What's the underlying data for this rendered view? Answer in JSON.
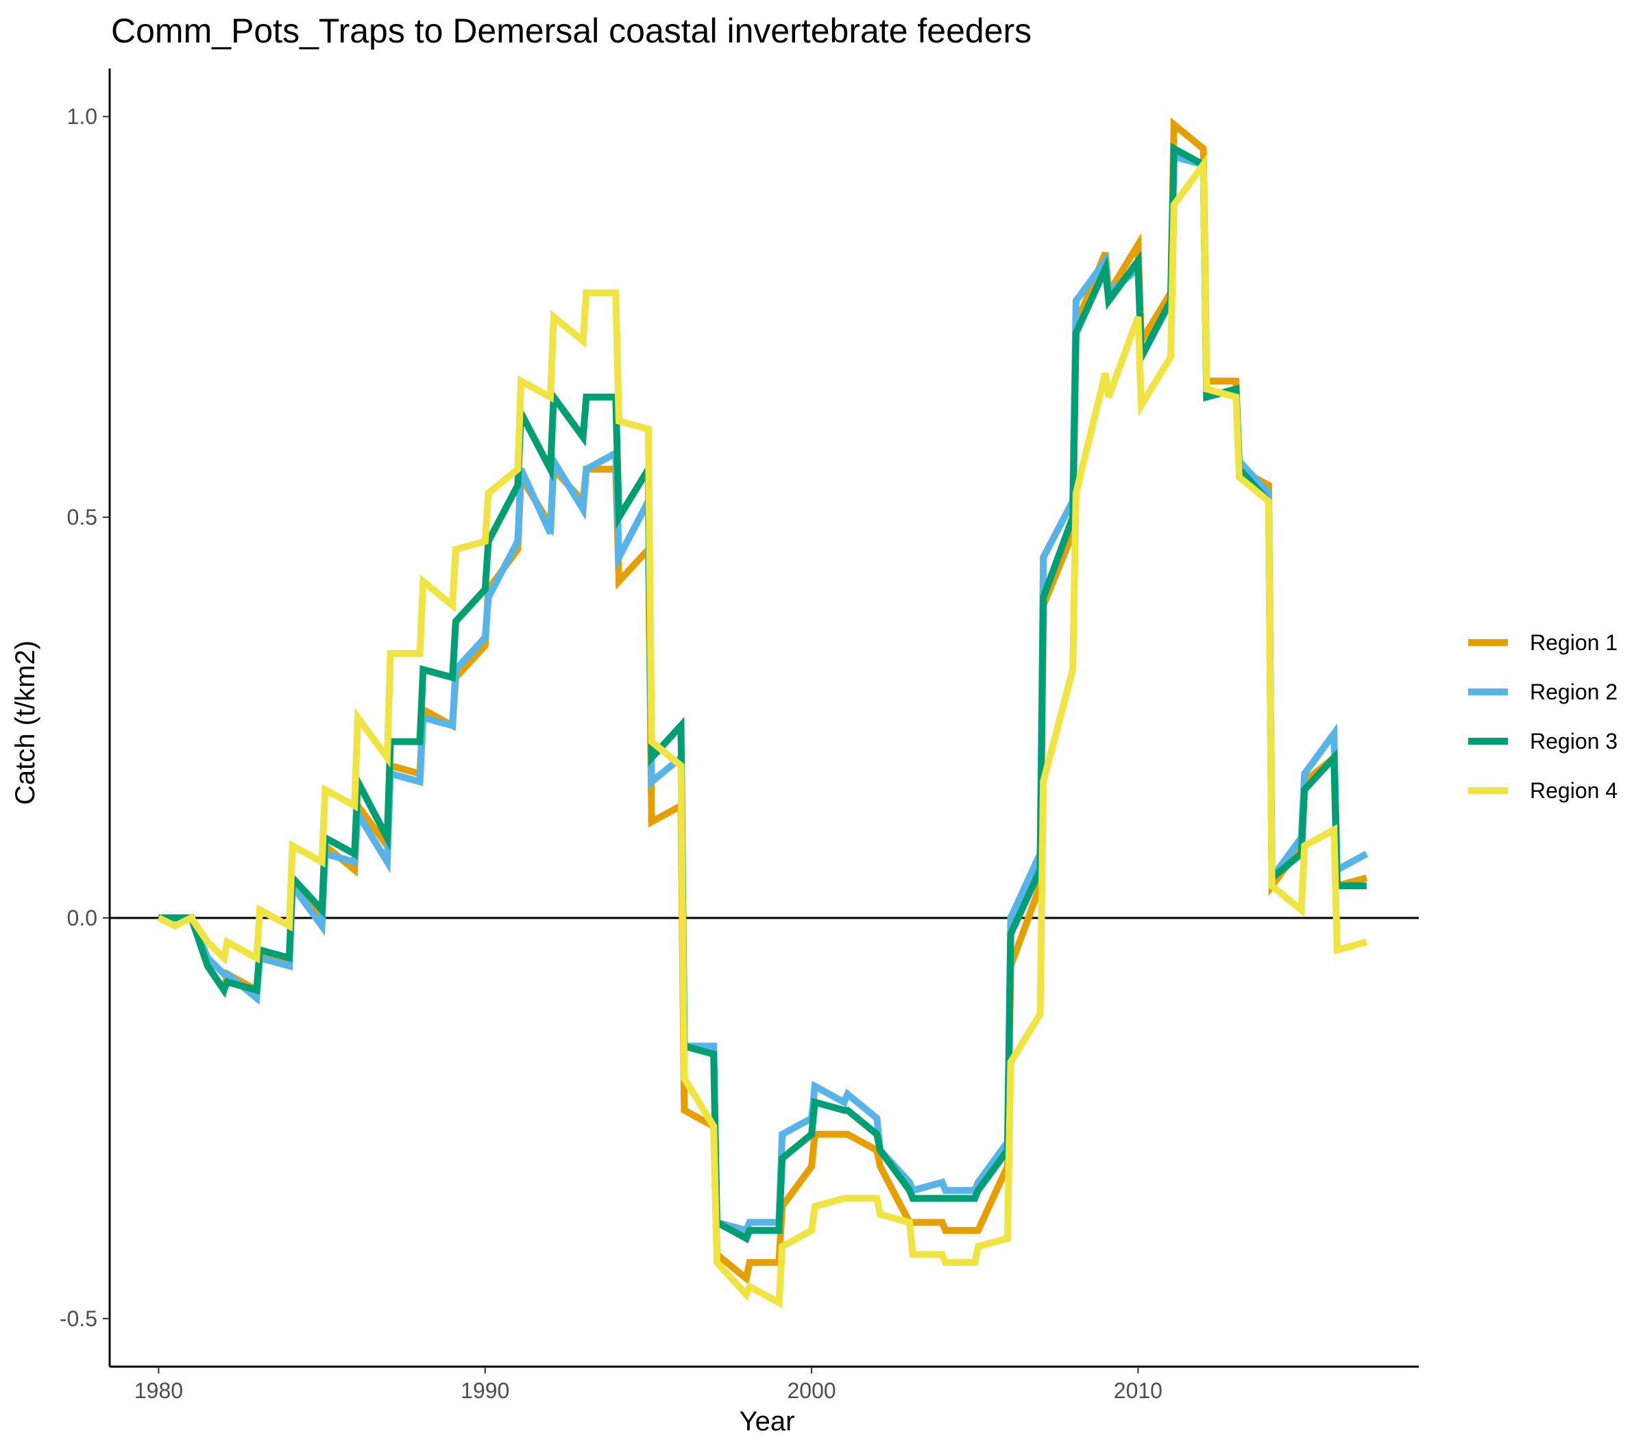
{
  "chart_data": {
    "type": "line",
    "title": "Comm_Pots_Traps to Demersal coastal invertebrate feeders",
    "xlabel": "Year",
    "ylabel": "Catch (t/km2)",
    "xlim": [
      1978.5,
      2018.6
    ],
    "ylim": [
      -0.56,
      1.06
    ],
    "x_ticks": [
      1980,
      1990,
      2000,
      2010
    ],
    "y_ticks": [
      {
        "value": -0.5,
        "label": "-0.5"
      },
      {
        "value": 0.0,
        "label": "0.0"
      },
      {
        "value": 0.5,
        "label": "0.5"
      },
      {
        "value": 1.0,
        "label": "1.0"
      }
    ],
    "zero_line": true,
    "grid": false,
    "legend_position": "right",
    "series": [
      {
        "name": "Region 1",
        "color": "#E69F00",
        "points": [
          [
            1980.0,
            0.0
          ],
          [
            1980.5,
            0.0
          ],
          [
            1981.0,
            0.0
          ],
          [
            1981.5,
            -0.06
          ],
          [
            1982.0,
            -0.09
          ],
          [
            1982.1,
            -0.07
          ],
          [
            1983.0,
            -0.09
          ],
          [
            1983.1,
            -0.05
          ],
          [
            1984.0,
            -0.05
          ],
          [
            1984.1,
            0.04
          ],
          [
            1985.0,
            0.0
          ],
          [
            1985.1,
            0.09
          ],
          [
            1986.0,
            0.06
          ],
          [
            1986.1,
            0.14
          ],
          [
            1987.0,
            0.09
          ],
          [
            1987.1,
            0.19
          ],
          [
            1988.0,
            0.18
          ],
          [
            1988.1,
            0.26
          ],
          [
            1989.0,
            0.24
          ],
          [
            1989.1,
            0.3
          ],
          [
            1990.0,
            0.34
          ],
          [
            1990.1,
            0.41
          ],
          [
            1991.0,
            0.46
          ],
          [
            1991.1,
            0.55
          ],
          [
            1992.0,
            0.49
          ],
          [
            1992.1,
            0.56
          ],
          [
            1993.0,
            0.52
          ],
          [
            1993.1,
            0.56
          ],
          [
            1994.0,
            0.56
          ],
          [
            1994.1,
            0.42
          ],
          [
            1995.0,
            0.46
          ],
          [
            1995.1,
            0.12
          ],
          [
            1996.0,
            0.14
          ],
          [
            1996.1,
            -0.24
          ],
          [
            1997.0,
            -0.26
          ],
          [
            1997.1,
            -0.42
          ],
          [
            1998.0,
            -0.45
          ],
          [
            1998.1,
            -0.43
          ],
          [
            1999.0,
            -0.43
          ],
          [
            1999.1,
            -0.36
          ],
          [
            2000.0,
            -0.31
          ],
          [
            2000.1,
            -0.27
          ],
          [
            2001.0,
            -0.27
          ],
          [
            2001.1,
            -0.27
          ],
          [
            2002.0,
            -0.29
          ],
          [
            2002.1,
            -0.31
          ],
          [
            2003.0,
            -0.38
          ],
          [
            2003.1,
            -0.38
          ],
          [
            2004.0,
            -0.38
          ],
          [
            2004.1,
            -0.39
          ],
          [
            2005.0,
            -0.39
          ],
          [
            2005.1,
            -0.39
          ],
          [
            2006.0,
            -0.31
          ],
          [
            2006.1,
            -0.06
          ],
          [
            2007.0,
            0.04
          ],
          [
            2007.1,
            0.39
          ],
          [
            2008.0,
            0.48
          ],
          [
            2008.1,
            0.74
          ],
          [
            2009.0,
            0.83
          ],
          [
            2009.1,
            0.78
          ],
          [
            2010.0,
            0.84
          ],
          [
            2010.1,
            0.72
          ],
          [
            2011.0,
            0.78
          ],
          [
            2011.1,
            0.99
          ],
          [
            2012.0,
            0.96
          ],
          [
            2012.1,
            0.67
          ],
          [
            2013.0,
            0.67
          ],
          [
            2013.1,
            0.56
          ],
          [
            2014.0,
            0.54
          ],
          [
            2014.1,
            0.04
          ],
          [
            2015.0,
            0.09
          ],
          [
            2015.1,
            0.17
          ],
          [
            2016.0,
            0.2
          ],
          [
            2016.1,
            0.04
          ],
          [
            2017.0,
            0.05
          ]
        ]
      },
      {
        "name": "Region 2",
        "color": "#56B4E9",
        "points": [
          [
            1980.0,
            0.0
          ],
          [
            1980.5,
            0.0
          ],
          [
            1981.0,
            0.0
          ],
          [
            1981.5,
            -0.05
          ],
          [
            1982.0,
            -0.07
          ],
          [
            1982.1,
            -0.07
          ],
          [
            1983.0,
            -0.1
          ],
          [
            1983.1,
            -0.05
          ],
          [
            1984.0,
            -0.06
          ],
          [
            1984.1,
            0.04
          ],
          [
            1985.0,
            -0.01
          ],
          [
            1985.1,
            0.08
          ],
          [
            1986.0,
            0.07
          ],
          [
            1986.1,
            0.13
          ],
          [
            1987.0,
            0.07
          ],
          [
            1987.1,
            0.18
          ],
          [
            1988.0,
            0.17
          ],
          [
            1988.1,
            0.25
          ],
          [
            1989.0,
            0.24
          ],
          [
            1989.1,
            0.31
          ],
          [
            1990.0,
            0.35
          ],
          [
            1990.1,
            0.4
          ],
          [
            1991.0,
            0.47
          ],
          [
            1991.1,
            0.56
          ],
          [
            1992.0,
            0.48
          ],
          [
            1992.1,
            0.57
          ],
          [
            1993.0,
            0.51
          ],
          [
            1993.1,
            0.56
          ],
          [
            1994.0,
            0.58
          ],
          [
            1994.1,
            0.45
          ],
          [
            1995.0,
            0.52
          ],
          [
            1995.1,
            0.17
          ],
          [
            1996.0,
            0.2
          ],
          [
            1996.1,
            -0.16
          ],
          [
            1997.0,
            -0.16
          ],
          [
            1997.1,
            -0.38
          ],
          [
            1998.0,
            -0.39
          ],
          [
            1998.1,
            -0.38
          ],
          [
            1999.0,
            -0.38
          ],
          [
            1999.1,
            -0.27
          ],
          [
            2000.0,
            -0.25
          ],
          [
            2000.1,
            -0.21
          ],
          [
            2001.0,
            -0.23
          ],
          [
            2001.1,
            -0.22
          ],
          [
            2002.0,
            -0.25
          ],
          [
            2002.1,
            -0.29
          ],
          [
            2003.0,
            -0.33
          ],
          [
            2003.1,
            -0.34
          ],
          [
            2004.0,
            -0.33
          ],
          [
            2004.1,
            -0.34
          ],
          [
            2005.0,
            -0.34
          ],
          [
            2005.1,
            -0.33
          ],
          [
            2006.0,
            -0.28
          ],
          [
            2006.1,
            0.0
          ],
          [
            2007.0,
            0.08
          ],
          [
            2007.1,
            0.45
          ],
          [
            2008.0,
            0.52
          ],
          [
            2008.1,
            0.77
          ],
          [
            2009.0,
            0.82
          ],
          [
            2009.1,
            0.78
          ],
          [
            2010.0,
            0.81
          ],
          [
            2010.1,
            0.7
          ],
          [
            2011.0,
            0.77
          ],
          [
            2011.1,
            0.95
          ],
          [
            2012.0,
            0.94
          ],
          [
            2012.1,
            0.65
          ],
          [
            2013.0,
            0.66
          ],
          [
            2013.1,
            0.57
          ],
          [
            2014.0,
            0.53
          ],
          [
            2014.1,
            0.05
          ],
          [
            2015.0,
            0.1
          ],
          [
            2015.1,
            0.18
          ],
          [
            2016.0,
            0.23
          ],
          [
            2016.1,
            0.06
          ],
          [
            2017.0,
            0.08
          ]
        ]
      },
      {
        "name": "Region 3",
        "color": "#009E73",
        "points": [
          [
            1980.0,
            0.0
          ],
          [
            1980.5,
            0.0
          ],
          [
            1981.0,
            0.0
          ],
          [
            1981.5,
            -0.06
          ],
          [
            1982.0,
            -0.09
          ],
          [
            1982.1,
            -0.08
          ],
          [
            1983.0,
            -0.09
          ],
          [
            1983.1,
            -0.04
          ],
          [
            1984.0,
            -0.05
          ],
          [
            1984.1,
            0.05
          ],
          [
            1985.0,
            0.01
          ],
          [
            1985.1,
            0.1
          ],
          [
            1986.0,
            0.08
          ],
          [
            1986.1,
            0.17
          ],
          [
            1987.0,
            0.1
          ],
          [
            1987.1,
            0.22
          ],
          [
            1988.0,
            0.22
          ],
          [
            1988.1,
            0.31
          ],
          [
            1989.0,
            0.3
          ],
          [
            1989.1,
            0.37
          ],
          [
            1990.0,
            0.41
          ],
          [
            1990.1,
            0.47
          ],
          [
            1991.0,
            0.54
          ],
          [
            1991.1,
            0.63
          ],
          [
            1992.0,
            0.56
          ],
          [
            1992.1,
            0.65
          ],
          [
            1993.0,
            0.6
          ],
          [
            1993.1,
            0.65
          ],
          [
            1994.0,
            0.65
          ],
          [
            1994.1,
            0.5
          ],
          [
            1995.0,
            0.56
          ],
          [
            1995.1,
            0.2
          ],
          [
            1996.0,
            0.24
          ],
          [
            1996.1,
            -0.16
          ],
          [
            1997.0,
            -0.17
          ],
          [
            1997.1,
            -0.38
          ],
          [
            1998.0,
            -0.4
          ],
          [
            1998.1,
            -0.39
          ],
          [
            1999.0,
            -0.39
          ],
          [
            1999.1,
            -0.3
          ],
          [
            2000.0,
            -0.27
          ],
          [
            2000.1,
            -0.23
          ],
          [
            2001.0,
            -0.24
          ],
          [
            2001.1,
            -0.24
          ],
          [
            2002.0,
            -0.27
          ],
          [
            2002.1,
            -0.29
          ],
          [
            2003.0,
            -0.34
          ],
          [
            2003.1,
            -0.35
          ],
          [
            2004.0,
            -0.35
          ],
          [
            2004.1,
            -0.35
          ],
          [
            2005.0,
            -0.35
          ],
          [
            2005.1,
            -0.34
          ],
          [
            2006.0,
            -0.29
          ],
          [
            2006.1,
            -0.02
          ],
          [
            2007.0,
            0.06
          ],
          [
            2007.1,
            0.4
          ],
          [
            2008.0,
            0.5
          ],
          [
            2008.1,
            0.73
          ],
          [
            2009.0,
            0.81
          ],
          [
            2009.1,
            0.77
          ],
          [
            2010.0,
            0.82
          ],
          [
            2010.1,
            0.7
          ],
          [
            2011.0,
            0.77
          ],
          [
            2011.1,
            0.96
          ],
          [
            2012.0,
            0.94
          ],
          [
            2012.1,
            0.65
          ],
          [
            2013.0,
            0.66
          ],
          [
            2013.1,
            0.56
          ],
          [
            2014.0,
            0.52
          ],
          [
            2014.1,
            0.05
          ],
          [
            2015.0,
            0.08
          ],
          [
            2015.1,
            0.16
          ],
          [
            2016.0,
            0.2
          ],
          [
            2016.1,
            0.04
          ],
          [
            2017.0,
            0.04
          ]
        ]
      },
      {
        "name": "Region 4",
        "color": "#F0E442",
        "points": [
          [
            1980.0,
            0.0
          ],
          [
            1980.5,
            -0.01
          ],
          [
            1981.0,
            0.0
          ],
          [
            1981.5,
            -0.03
          ],
          [
            1982.0,
            -0.05
          ],
          [
            1982.1,
            -0.03
          ],
          [
            1983.0,
            -0.05
          ],
          [
            1983.1,
            0.01
          ],
          [
            1984.0,
            -0.01
          ],
          [
            1984.1,
            0.09
          ],
          [
            1985.0,
            0.07
          ],
          [
            1985.1,
            0.16
          ],
          [
            1986.0,
            0.14
          ],
          [
            1986.1,
            0.25
          ],
          [
            1987.0,
            0.2
          ],
          [
            1987.1,
            0.33
          ],
          [
            1988.0,
            0.33
          ],
          [
            1988.1,
            0.42
          ],
          [
            1989.0,
            0.39
          ],
          [
            1989.1,
            0.46
          ],
          [
            1990.0,
            0.47
          ],
          [
            1990.1,
            0.53
          ],
          [
            1991.0,
            0.56
          ],
          [
            1991.1,
            0.67
          ],
          [
            1992.0,
            0.65
          ],
          [
            1992.1,
            0.75
          ],
          [
            1993.0,
            0.72
          ],
          [
            1993.1,
            0.78
          ],
          [
            1994.0,
            0.78
          ],
          [
            1994.1,
            0.62
          ],
          [
            1995.0,
            0.61
          ],
          [
            1995.1,
            0.22
          ],
          [
            1996.0,
            0.19
          ],
          [
            1996.1,
            -0.2
          ],
          [
            1997.0,
            -0.26
          ],
          [
            1997.1,
            -0.43
          ],
          [
            1998.0,
            -0.47
          ],
          [
            1998.1,
            -0.46
          ],
          [
            1999.0,
            -0.48
          ],
          [
            1999.1,
            -0.41
          ],
          [
            2000.0,
            -0.39
          ],
          [
            2000.1,
            -0.36
          ],
          [
            2001.0,
            -0.35
          ],
          [
            2001.1,
            -0.35
          ],
          [
            2002.0,
            -0.35
          ],
          [
            2002.1,
            -0.37
          ],
          [
            2003.0,
            -0.38
          ],
          [
            2003.1,
            -0.42
          ],
          [
            2004.0,
            -0.42
          ],
          [
            2004.1,
            -0.43
          ],
          [
            2005.0,
            -0.43
          ],
          [
            2005.1,
            -0.41
          ],
          [
            2006.0,
            -0.4
          ],
          [
            2006.1,
            -0.18
          ],
          [
            2007.0,
            -0.12
          ],
          [
            2007.1,
            0.17
          ],
          [
            2008.0,
            0.31
          ],
          [
            2008.1,
            0.53
          ],
          [
            2009.0,
            0.68
          ],
          [
            2009.1,
            0.65
          ],
          [
            2010.0,
            0.75
          ],
          [
            2010.1,
            0.64
          ],
          [
            2011.0,
            0.7
          ],
          [
            2011.1,
            0.89
          ],
          [
            2012.0,
            0.94
          ],
          [
            2012.1,
            0.66
          ],
          [
            2013.0,
            0.65
          ],
          [
            2013.1,
            0.55
          ],
          [
            2014.0,
            0.52
          ],
          [
            2014.1,
            0.04
          ],
          [
            2015.0,
            0.01
          ],
          [
            2015.1,
            0.09
          ],
          [
            2016.0,
            0.11
          ],
          [
            2016.1,
            -0.04
          ],
          [
            2017.0,
            -0.03
          ]
        ]
      }
    ]
  }
}
